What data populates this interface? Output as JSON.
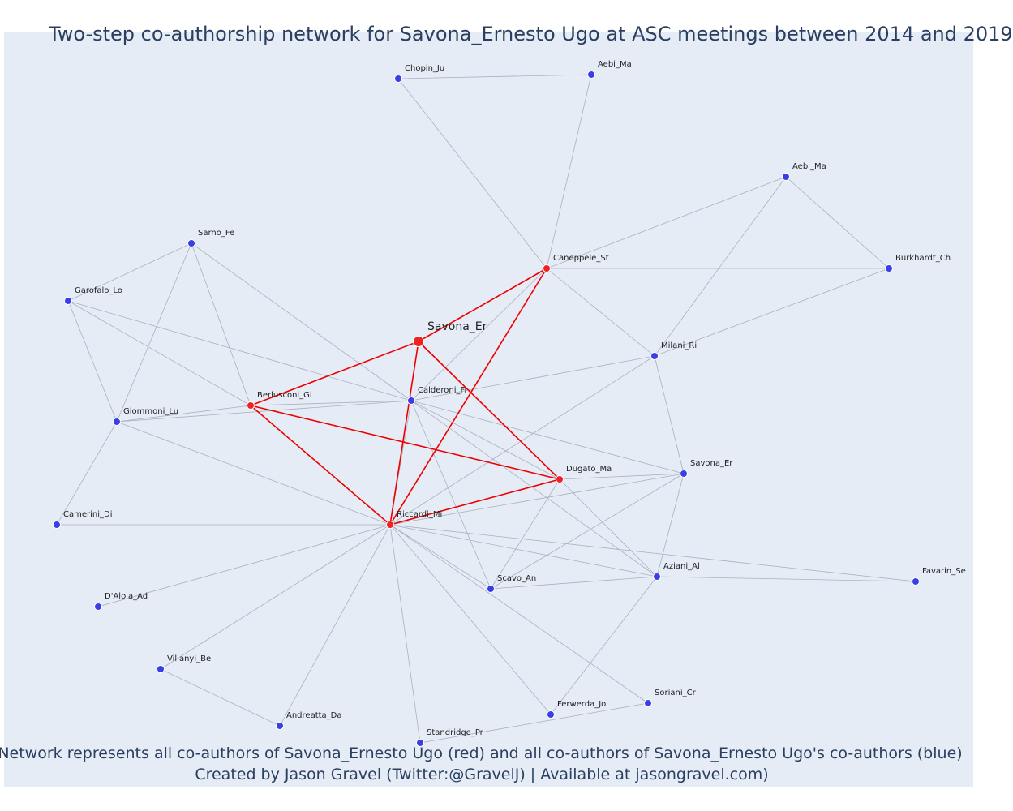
{
  "title": "Two-step co-authorship network for Savona_Ernesto Ugo at ASC meetings between 2014 and 2019",
  "caption": {
    "line1": "Network represents all co-authors of Savona_Ernesto Ugo (red) and all co-authors of Savona_Ernesto Ugo's co-authors (blue)",
    "line2": "Created by Jason Gravel (Twitter:@GravelJ) | Available at jasongravel.com)"
  },
  "colors": {
    "background": "#e5ecf6",
    "first_degree": "#ee2222",
    "second_degree": "#3a3ee8",
    "red_edge": "#ee0000",
    "grey_edge": "#aab0c0"
  },
  "nodes": [
    {
      "id": "savona_center",
      "label": "Savona_Er",
      "group": "center"
    },
    {
      "id": "caneppele",
      "label": "Caneppele_St",
      "group": "red"
    },
    {
      "id": "berlusconi",
      "label": "Berlusconi_Gi",
      "group": "red"
    },
    {
      "id": "dugato",
      "label": "Dugato_Ma",
      "group": "red"
    },
    {
      "id": "riccardi",
      "label": "Riccardi_Mi",
      "group": "red"
    },
    {
      "id": "chopin",
      "label": "Chopin_Ju",
      "group": "blue"
    },
    {
      "id": "aebi1",
      "label": "Aebi_Ma",
      "group": "blue"
    },
    {
      "id": "aebi2",
      "label": "Aebi_Ma",
      "group": "blue"
    },
    {
      "id": "burkhardt",
      "label": "Burkhardt_Ch",
      "group": "blue"
    },
    {
      "id": "sarno",
      "label": "Sarno_Fe",
      "group": "blue"
    },
    {
      "id": "garofalo",
      "label": "Garofalo_Lo",
      "group": "blue"
    },
    {
      "id": "milani",
      "label": "Milani_Ri",
      "group": "blue"
    },
    {
      "id": "calderoni",
      "label": "Calderoni_Fr",
      "group": "blue"
    },
    {
      "id": "giommoni",
      "label": "Giommoni_Lu",
      "group": "blue"
    },
    {
      "id": "savona2",
      "label": "Savona_Er",
      "group": "blue"
    },
    {
      "id": "camerini",
      "label": "Camerini_Di",
      "group": "blue"
    },
    {
      "id": "aziani",
      "label": "Aziani_Al",
      "group": "blue"
    },
    {
      "id": "favarin",
      "label": "Favarin_Se",
      "group": "blue"
    },
    {
      "id": "scavo",
      "label": "Scavo_An",
      "group": "blue"
    },
    {
      "id": "daloia",
      "label": "D'Aloia_Ad",
      "group": "blue"
    },
    {
      "id": "villanyi",
      "label": "Villanyi_Be",
      "group": "blue"
    },
    {
      "id": "soriani",
      "label": "Soriani_Cr",
      "group": "blue"
    },
    {
      "id": "ferwerda",
      "label": "Ferwerda_Jo",
      "group": "blue"
    },
    {
      "id": "andreatta",
      "label": "Andreatta_Da",
      "group": "blue"
    },
    {
      "id": "standridge",
      "label": "Standridge_Pr",
      "group": "blue"
    }
  ],
  "edges": [
    {
      "source": "savona_center",
      "target": "caneppele",
      "type": "red"
    },
    {
      "source": "savona_center",
      "target": "berlusconi",
      "type": "red"
    },
    {
      "source": "savona_center",
      "target": "dugato",
      "type": "red"
    },
    {
      "source": "savona_center",
      "target": "riccardi",
      "type": "red"
    },
    {
      "source": "caneppele",
      "target": "riccardi",
      "type": "red"
    },
    {
      "source": "berlusconi",
      "target": "riccardi",
      "type": "red"
    },
    {
      "source": "berlusconi",
      "target": "dugato",
      "type": "red"
    },
    {
      "source": "dugato",
      "target": "riccardi",
      "type": "red"
    },
    {
      "source": "chopin",
      "target": "aebi1",
      "type": "grey"
    },
    {
      "source": "chopin",
      "target": "caneppele",
      "type": "grey"
    },
    {
      "source": "aebi1",
      "target": "caneppele",
      "type": "grey"
    },
    {
      "source": "caneppele",
      "target": "aebi2",
      "type": "grey"
    },
    {
      "source": "caneppele",
      "target": "burkhardt",
      "type": "grey"
    },
    {
      "source": "caneppele",
      "target": "milani",
      "type": "grey"
    },
    {
      "source": "caneppele",
      "target": "calderoni",
      "type": "grey"
    },
    {
      "source": "aebi2",
      "target": "burkhardt",
      "type": "grey"
    },
    {
      "source": "aebi2",
      "target": "milani",
      "type": "grey"
    },
    {
      "source": "burkhardt",
      "target": "milani",
      "type": "grey"
    },
    {
      "source": "milani",
      "target": "calderoni",
      "type": "grey"
    },
    {
      "source": "milani",
      "target": "riccardi",
      "type": "grey"
    },
    {
      "source": "milani",
      "target": "savona2",
      "type": "grey"
    },
    {
      "source": "sarno",
      "target": "garofalo",
      "type": "grey"
    },
    {
      "source": "sarno",
      "target": "berlusconi",
      "type": "grey"
    },
    {
      "source": "sarno",
      "target": "giommoni",
      "type": "grey"
    },
    {
      "source": "sarno",
      "target": "calderoni",
      "type": "grey"
    },
    {
      "source": "garofalo",
      "target": "berlusconi",
      "type": "grey"
    },
    {
      "source": "garofalo",
      "target": "giommoni",
      "type": "grey"
    },
    {
      "source": "garofalo",
      "target": "calderoni",
      "type": "grey"
    },
    {
      "source": "berlusconi",
      "target": "giommoni",
      "type": "grey"
    },
    {
      "source": "berlusconi",
      "target": "calderoni",
      "type": "grey"
    },
    {
      "source": "giommoni",
      "target": "calderoni",
      "type": "grey"
    },
    {
      "source": "giommoni",
      "target": "riccardi",
      "type": "grey"
    },
    {
      "source": "giommoni",
      "target": "camerini",
      "type": "grey"
    },
    {
      "source": "calderoni",
      "target": "riccardi",
      "type": "grey"
    },
    {
      "source": "calderoni",
      "target": "dugato",
      "type": "grey"
    },
    {
      "source": "calderoni",
      "target": "savona2",
      "type": "grey"
    },
    {
      "source": "calderoni",
      "target": "aziani",
      "type": "grey"
    },
    {
      "source": "calderoni",
      "target": "scavo",
      "type": "grey"
    },
    {
      "source": "dugato",
      "target": "savona2",
      "type": "grey"
    },
    {
      "source": "dugato",
      "target": "aziani",
      "type": "grey"
    },
    {
      "source": "dugato",
      "target": "scavo",
      "type": "grey"
    },
    {
      "source": "savona2",
      "target": "aziani",
      "type": "grey"
    },
    {
      "source": "savona2",
      "target": "riccardi",
      "type": "grey"
    },
    {
      "source": "savona2",
      "target": "scavo",
      "type": "grey"
    },
    {
      "source": "riccardi",
      "target": "favarin",
      "type": "grey"
    },
    {
      "source": "aziani",
      "target": "favarin",
      "type": "grey"
    },
    {
      "source": "aziani",
      "target": "scavo",
      "type": "grey"
    },
    {
      "source": "aziani",
      "target": "ferwerda",
      "type": "grey"
    },
    {
      "source": "aziani",
      "target": "riccardi",
      "type": "grey"
    },
    {
      "source": "riccardi",
      "target": "camerini",
      "type": "grey"
    },
    {
      "source": "riccardi",
      "target": "scavo",
      "type": "grey"
    },
    {
      "source": "riccardi",
      "target": "daloia",
      "type": "grey"
    },
    {
      "source": "riccardi",
      "target": "villanyi",
      "type": "grey"
    },
    {
      "source": "riccardi",
      "target": "andreatta",
      "type": "grey"
    },
    {
      "source": "riccardi",
      "target": "standridge",
      "type": "grey"
    },
    {
      "source": "riccardi",
      "target": "ferwerda",
      "type": "grey"
    },
    {
      "source": "riccardi",
      "target": "soriani",
      "type": "grey"
    },
    {
      "source": "villanyi",
      "target": "andreatta",
      "type": "grey"
    },
    {
      "source": "standridge",
      "target": "soriani",
      "type": "grey"
    }
  ]
}
